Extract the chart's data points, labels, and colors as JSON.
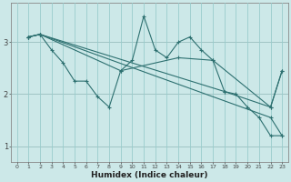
{
  "xlabel": "Humidex (Indice chaleur)",
  "bg_color": "#cce8e8",
  "grid_color": "#99cccc",
  "red_grid_color": "#cc9999",
  "line_color": "#2d7070",
  "xlim": [
    -0.5,
    23.5
  ],
  "ylim": [
    0.7,
    3.75
  ],
  "yticks": [
    1,
    2,
    3
  ],
  "xticks": [
    0,
    1,
    2,
    3,
    4,
    5,
    6,
    7,
    8,
    9,
    10,
    11,
    12,
    13,
    14,
    15,
    16,
    17,
    18,
    19,
    20,
    21,
    22,
    23
  ],
  "series": [
    {
      "x": [
        1,
        2,
        3,
        4,
        5,
        6,
        7,
        8,
        9,
        10,
        11,
        12,
        13,
        14,
        15,
        16,
        17,
        18,
        19,
        20,
        21,
        22,
        23
      ],
      "y": [
        3.1,
        3.15,
        2.85,
        2.6,
        2.25,
        2.25,
        1.95,
        1.75,
        2.45,
        2.65,
        3.5,
        2.85,
        2.7,
        3.0,
        3.1,
        2.85,
        2.65,
        2.05,
        2.0,
        1.75,
        1.55,
        1.2,
        1.2
      ]
    },
    {
      "x": [
        1,
        2,
        22,
        23
      ],
      "y": [
        3.1,
        3.15,
        1.55,
        1.2
      ]
    },
    {
      "x": [
        1,
        2,
        18,
        22,
        23
      ],
      "y": [
        3.1,
        3.15,
        2.05,
        1.75,
        2.45
      ]
    },
    {
      "x": [
        1,
        2,
        9,
        14,
        17,
        22,
        23
      ],
      "y": [
        3.1,
        3.15,
        2.45,
        2.7,
        2.65,
        1.75,
        2.45
      ]
    }
  ]
}
